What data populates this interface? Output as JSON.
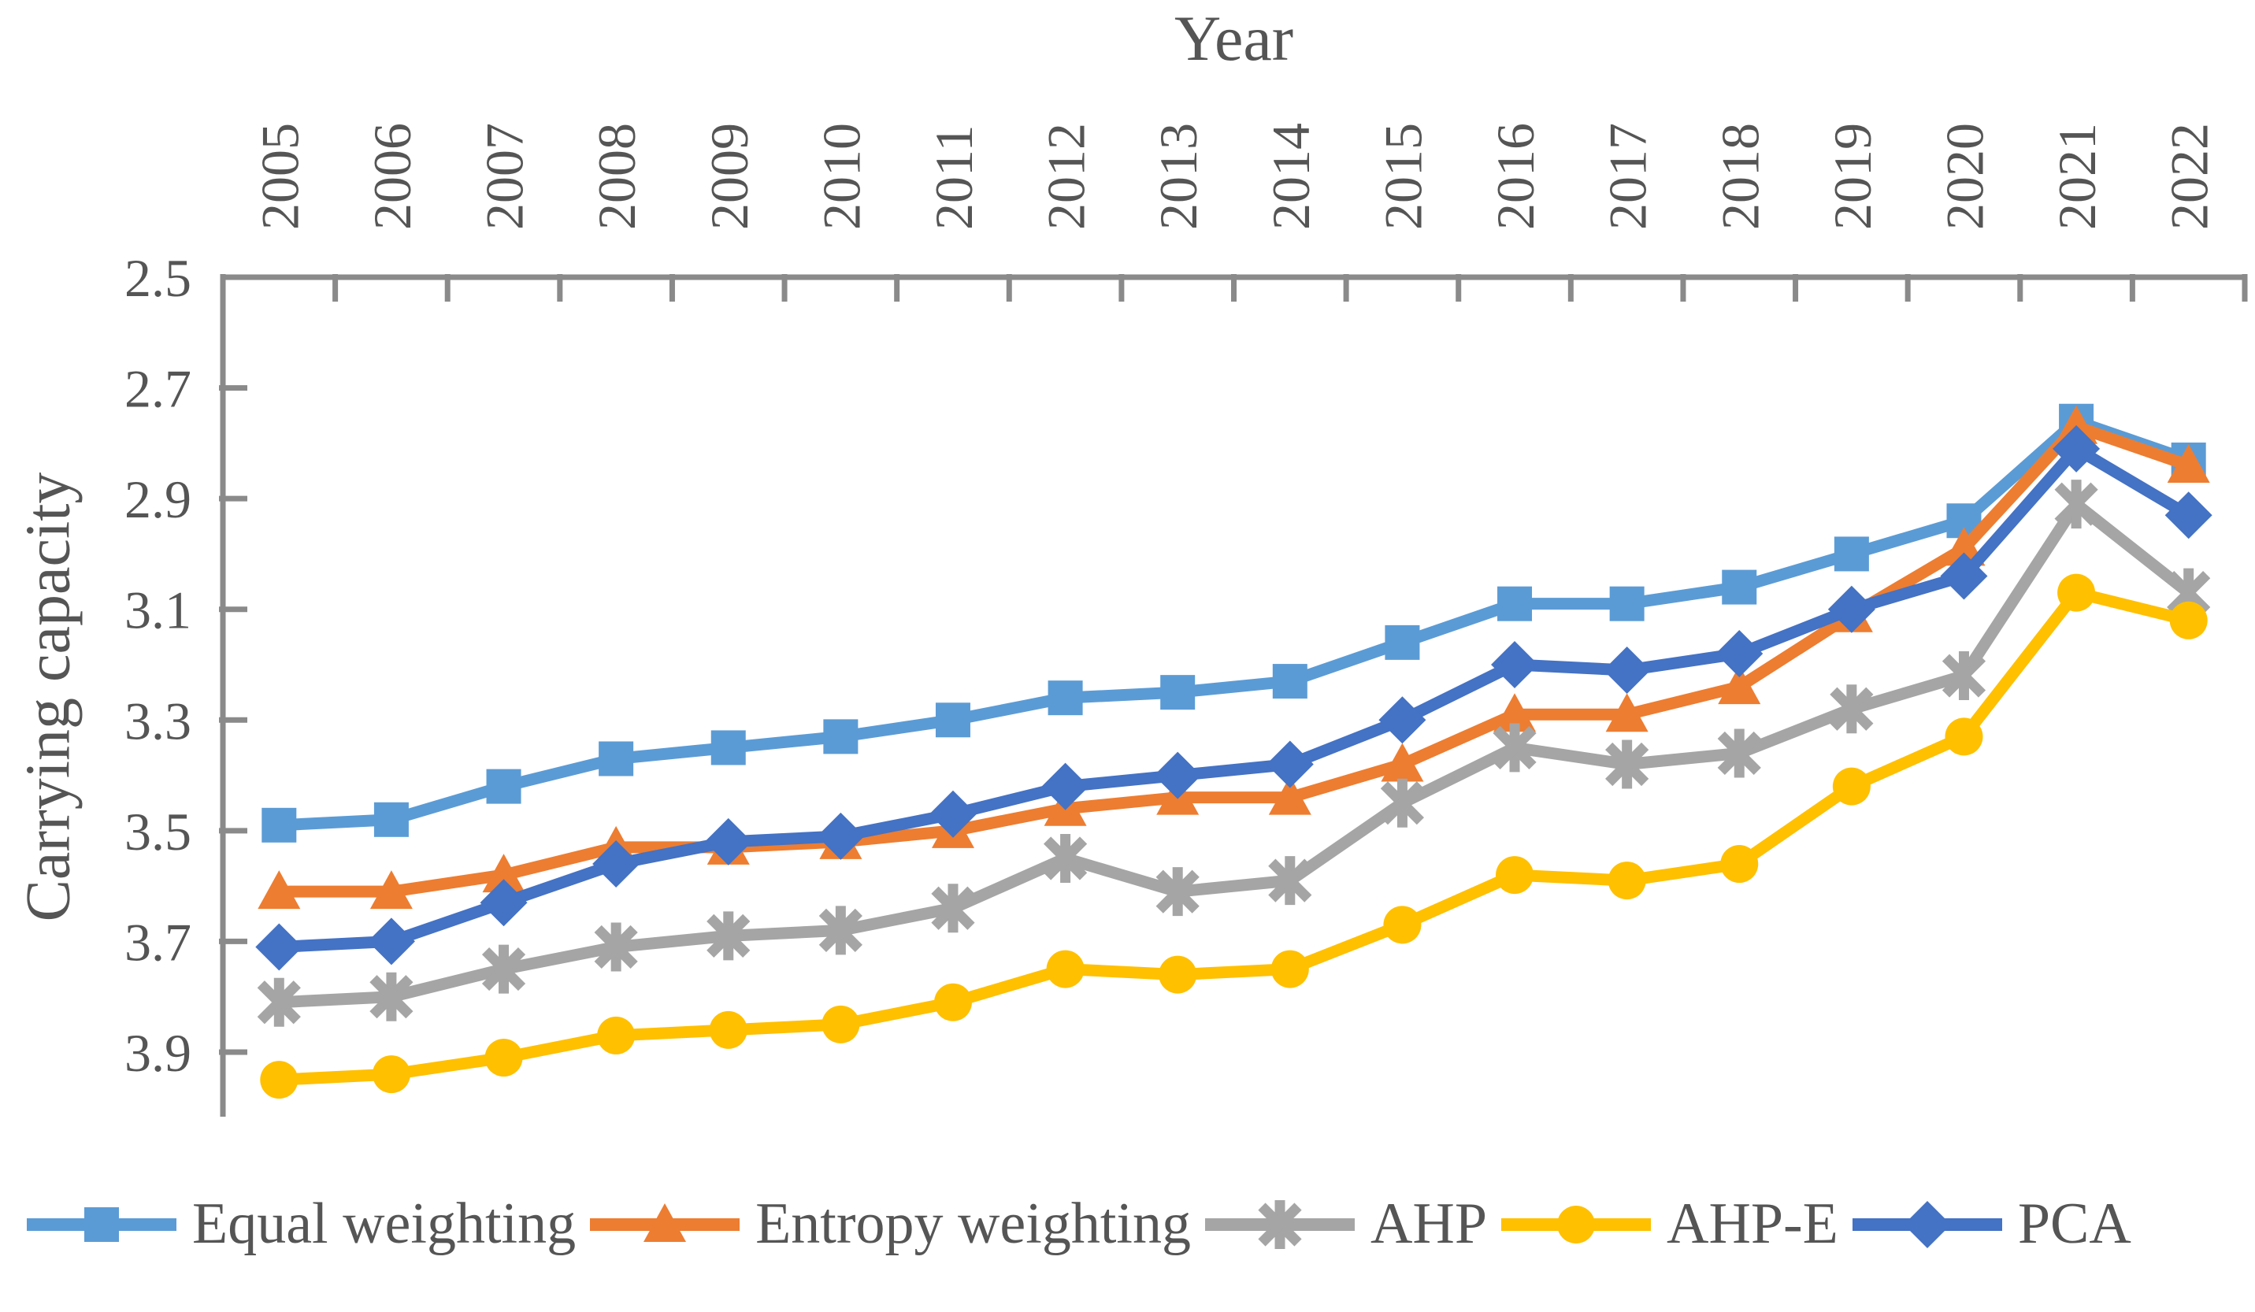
{
  "figure": {
    "title": "Year",
    "y_axis_title": "Carrying capacity"
  },
  "colors": {
    "axis": "#8A8A8A",
    "text": "#555555",
    "background": "#FFFFFF",
    "equal_weighting": "#5B9BD5",
    "entropy_weighting": "#ED7D31",
    "ahp": "#A5A5A5",
    "ahp_e": "#FFC000",
    "pca": "#4472C4"
  },
  "chart_data": {
    "type": "line",
    "title": "Year",
    "xlabel": "Year",
    "ylabel": "Carrying capacity",
    "categories": [
      "2005",
      "2006",
      "2007",
      "2008",
      "2009",
      "2010",
      "2011",
      "2012",
      "2013",
      "2014",
      "2015",
      "2016",
      "2017",
      "2018",
      "2019",
      "2020",
      "2021",
      "2022"
    ],
    "x_tick_rotation": 90,
    "y_ticks": [
      2.5,
      2.7,
      2.9,
      3.1,
      3.3,
      3.5,
      3.7,
      3.9
    ],
    "y_axis": {
      "min": 2.5,
      "max": 3.9,
      "step": 0.2,
      "reversed": true
    },
    "grid": false,
    "legend_position": "bottom",
    "series": [
      {
        "name": "Equal weighting",
        "color": "#5B9BD5",
        "marker": "square",
        "values": [
          3.49,
          3.48,
          3.42,
          3.37,
          3.35,
          3.33,
          3.3,
          3.26,
          3.25,
          3.23,
          3.16,
          3.09,
          3.09,
          3.06,
          3.0,
          2.94,
          2.76,
          2.83
        ]
      },
      {
        "name": "Entropy weighting",
        "color": "#ED7D31",
        "marker": "triangle",
        "values": [
          3.61,
          3.61,
          3.58,
          3.53,
          3.53,
          3.52,
          3.5,
          3.46,
          3.44,
          3.44,
          3.38,
          3.29,
          3.29,
          3.24,
          3.11,
          2.99,
          2.77,
          2.84
        ]
      },
      {
        "name": "AHP",
        "color": "#A5A5A5",
        "marker": "asterisk",
        "values": [
          3.81,
          3.8,
          3.75,
          3.71,
          3.69,
          3.68,
          3.64,
          3.55,
          3.61,
          3.59,
          3.45,
          3.35,
          3.38,
          3.36,
          3.28,
          3.22,
          2.91,
          3.07
        ]
      },
      {
        "name": "AHP-E",
        "color": "#FFC000",
        "marker": "circle",
        "values": [
          3.95,
          3.94,
          3.91,
          3.87,
          3.86,
          3.85,
          3.81,
          3.75,
          3.76,
          3.75,
          3.67,
          3.58,
          3.59,
          3.56,
          3.42,
          3.33,
          3.07,
          3.12
        ]
      },
      {
        "name": "PCA",
        "color": "#4472C4",
        "marker": "diamond",
        "values": [
          3.71,
          3.7,
          3.63,
          3.56,
          3.52,
          3.51,
          3.47,
          3.42,
          3.4,
          3.38,
          3.3,
          3.2,
          3.21,
          3.18,
          3.1,
          3.04,
          2.81,
          2.93
        ]
      }
    ]
  }
}
